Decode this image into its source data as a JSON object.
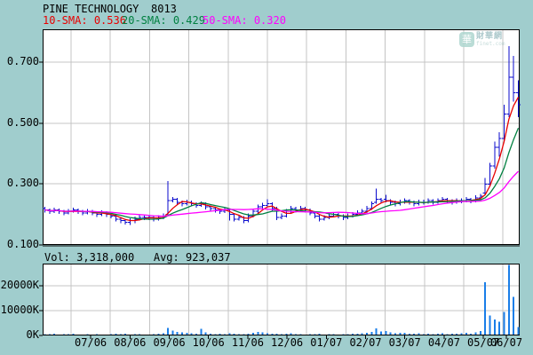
{
  "header": {
    "title": "PINE TECHNOLOGY",
    "code": "8013"
  },
  "legend": {
    "items": [
      {
        "label": "10-SMA:",
        "value": "0.536",
        "color": "#e80000",
        "approx_window": 4
      },
      {
        "label": "20-SMA:",
        "value": "0.429",
        "color": "#008040",
        "approx_window": 8
      },
      {
        "label": "50-SMA:",
        "value": "0.320",
        "color": "#ff00ff",
        "approx_window": 20
      }
    ]
  },
  "volume_header": {
    "vol_label": "Vol:",
    "vol_value": "3,318,000",
    "avg_label": "Avg:",
    "avg_value": "923,037"
  },
  "watermark": {
    "glyph": "華",
    "name": "財華網",
    "domain": "finet.com"
  },
  "colors": {
    "background": "#a0cdcd",
    "plot_bg": "#ffffff",
    "grid": "#c4c4c4",
    "axis": "#000000",
    "candle": "#0a0acc",
    "volume_bar": "#1a7ee8",
    "sma10": "#e80000",
    "sma20": "#008040",
    "sma50": "#ff00ff"
  },
  "chart_data": {
    "type": "candlestick+volume",
    "title": "PINE TECHNOLOGY 8013",
    "price_axis": {
      "tick_labels": [
        "0.700",
        "0.500",
        "0.300",
        "0.100"
      ],
      "tick_values": [
        0.7,
        0.5,
        0.3,
        0.1
      ],
      "min": 0.1,
      "max": 0.808
    },
    "volume_axis": {
      "tick_labels": [
        "20000K",
        "10000K",
        "0K"
      ],
      "tick_values": [
        20000,
        10000,
        0
      ],
      "max": 29000
    },
    "months": [
      "07/06",
      "08/06",
      "09/06",
      "10/06",
      "11/06",
      "12/06",
      "01/07",
      "02/07",
      "03/07",
      "04/07",
      "05/07",
      "06/07"
    ],
    "grid": true,
    "bars_note": "each bar = [open, high, low, close, volume_in_K], ~2.5 trading days per bar, Jun 2006 - mid Jun 2007",
    "bars": [
      [
        0.22,
        0.225,
        0.207,
        0.215,
        600
      ],
      [
        0.215,
        0.22,
        0.202,
        0.21,
        500
      ],
      [
        0.21,
        0.222,
        0.205,
        0.215,
        700
      ],
      [
        0.215,
        0.22,
        0.202,
        0.21,
        400
      ],
      [
        0.21,
        0.215,
        0.197,
        0.205,
        600
      ],
      [
        0.205,
        0.218,
        0.2,
        0.21,
        500
      ],
      [
        0.21,
        0.222,
        0.207,
        0.215,
        800
      ],
      [
        0.215,
        0.22,
        0.202,
        0.21,
        400
      ],
      [
        0.21,
        0.215,
        0.197,
        0.205,
        350
      ],
      [
        0.205,
        0.218,
        0.2,
        0.21,
        500
      ],
      [
        0.21,
        0.215,
        0.197,
        0.205,
        300
      ],
      [
        0.205,
        0.21,
        0.192,
        0.2,
        450
      ],
      [
        0.2,
        0.213,
        0.195,
        0.205,
        400
      ],
      [
        0.205,
        0.21,
        0.192,
        0.2,
        350
      ],
      [
        0.2,
        0.205,
        0.187,
        0.195,
        500
      ],
      [
        0.195,
        0.2,
        0.177,
        0.185,
        700
      ],
      [
        0.185,
        0.19,
        0.172,
        0.18,
        600
      ],
      [
        0.18,
        0.185,
        0.167,
        0.175,
        800
      ],
      [
        0.175,
        0.188,
        0.165,
        0.18,
        400
      ],
      [
        0.18,
        0.193,
        0.172,
        0.185,
        500
      ],
      [
        0.185,
        0.198,
        0.18,
        0.19,
        600
      ],
      [
        0.19,
        0.196,
        0.182,
        0.19,
        300
      ],
      [
        0.19,
        0.196,
        0.182,
        0.19,
        400
      ],
      [
        0.19,
        0.195,
        0.177,
        0.185,
        500
      ],
      [
        0.185,
        0.198,
        0.18,
        0.19,
        700
      ],
      [
        0.19,
        0.203,
        0.185,
        0.195,
        900
      ],
      [
        0.2,
        0.31,
        0.195,
        0.245,
        3000
      ],
      [
        0.245,
        0.258,
        0.24,
        0.25,
        2000
      ],
      [
        0.25,
        0.255,
        0.232,
        0.24,
        1500
      ],
      [
        0.24,
        0.245,
        0.227,
        0.235,
        1200
      ],
      [
        0.235,
        0.248,
        0.23,
        0.24,
        1000
      ],
      [
        0.24,
        0.245,
        0.227,
        0.235,
        900
      ],
      [
        0.235,
        0.24,
        0.222,
        0.23,
        800
      ],
      [
        0.23,
        0.243,
        0.225,
        0.235,
        2600
      ],
      [
        0.235,
        0.24,
        0.217,
        0.225,
        1200
      ],
      [
        0.225,
        0.23,
        0.212,
        0.22,
        700
      ],
      [
        0.22,
        0.225,
        0.207,
        0.215,
        600
      ],
      [
        0.215,
        0.22,
        0.202,
        0.21,
        800
      ],
      [
        0.21,
        0.223,
        0.205,
        0.215,
        500
      ],
      [
        0.215,
        0.218,
        0.18,
        0.2,
        900
      ],
      [
        0.2,
        0.205,
        0.177,
        0.185,
        700
      ],
      [
        0.185,
        0.198,
        0.18,
        0.19,
        500
      ],
      [
        0.19,
        0.195,
        0.172,
        0.18,
        600
      ],
      [
        0.18,
        0.203,
        0.175,
        0.195,
        800
      ],
      [
        0.195,
        0.218,
        0.19,
        0.21,
        1100
      ],
      [
        0.21,
        0.233,
        0.205,
        0.225,
        1500
      ],
      [
        0.225,
        0.238,
        0.22,
        0.23,
        1200
      ],
      [
        0.23,
        0.25,
        0.225,
        0.235,
        900
      ],
      [
        0.235,
        0.24,
        0.212,
        0.22,
        700
      ],
      [
        0.22,
        0.225,
        0.182,
        0.19,
        800
      ],
      [
        0.19,
        0.203,
        0.185,
        0.195,
        500
      ],
      [
        0.195,
        0.218,
        0.19,
        0.21,
        700
      ],
      [
        0.21,
        0.228,
        0.205,
        0.22,
        900
      ],
      [
        0.22,
        0.225,
        0.207,
        0.215,
        600
      ],
      [
        0.215,
        0.228,
        0.21,
        0.22,
        500
      ],
      [
        0.22,
        0.225,
        0.207,
        0.215,
        400
      ],
      [
        0.215,
        0.22,
        0.197,
        0.205,
        600
      ],
      [
        0.205,
        0.21,
        0.187,
        0.195,
        500
      ],
      [
        0.195,
        0.2,
        0.177,
        0.185,
        700
      ],
      [
        0.185,
        0.198,
        0.18,
        0.19,
        400
      ],
      [
        0.19,
        0.203,
        0.185,
        0.195,
        500
      ],
      [
        0.195,
        0.208,
        0.19,
        0.2,
        600
      ],
      [
        0.2,
        0.205,
        0.187,
        0.195,
        400
      ],
      [
        0.195,
        0.2,
        0.182,
        0.19,
        500
      ],
      [
        0.19,
        0.203,
        0.185,
        0.195,
        600
      ],
      [
        0.195,
        0.208,
        0.19,
        0.2,
        700
      ],
      [
        0.2,
        0.213,
        0.195,
        0.205,
        800
      ],
      [
        0.205,
        0.218,
        0.2,
        0.21,
        900
      ],
      [
        0.21,
        0.228,
        0.205,
        0.22,
        1100
      ],
      [
        0.22,
        0.243,
        0.215,
        0.235,
        1400
      ],
      [
        0.24,
        0.285,
        0.235,
        0.25,
        2800
      ],
      [
        0.25,
        0.255,
        0.237,
        0.245,
        1600
      ],
      [
        0.25,
        0.265,
        0.24,
        0.245,
        1800
      ],
      [
        0.245,
        0.25,
        0.232,
        0.24,
        1200
      ],
      [
        0.24,
        0.245,
        0.227,
        0.235,
        900
      ],
      [
        0.235,
        0.248,
        0.23,
        0.24,
        1000
      ],
      [
        0.24,
        0.253,
        0.235,
        0.245,
        1100
      ],
      [
        0.245,
        0.25,
        0.232,
        0.24,
        800
      ],
      [
        0.24,
        0.245,
        0.227,
        0.235,
        700
      ],
      [
        0.235,
        0.248,
        0.23,
        0.24,
        900
      ],
      [
        0.24,
        0.248,
        0.232,
        0.24,
        600
      ],
      [
        0.24,
        0.253,
        0.235,
        0.245,
        700
      ],
      [
        0.245,
        0.25,
        0.232,
        0.24,
        500
      ],
      [
        0.24,
        0.253,
        0.235,
        0.245,
        800
      ],
      [
        0.245,
        0.258,
        0.24,
        0.25,
        900
      ],
      [
        0.25,
        0.255,
        0.237,
        0.245,
        600
      ],
      [
        0.245,
        0.25,
        0.232,
        0.24,
        700
      ],
      [
        0.24,
        0.253,
        0.235,
        0.245,
        800
      ],
      [
        0.245,
        0.253,
        0.237,
        0.245,
        900
      ],
      [
        0.245,
        0.258,
        0.24,
        0.25,
        1000
      ],
      [
        0.25,
        0.255,
        0.237,
        0.245,
        800
      ],
      [
        0.245,
        0.263,
        0.24,
        0.255,
        1300
      ],
      [
        0.255,
        0.268,
        0.25,
        0.26,
        1800
      ],
      [
        0.27,
        0.32,
        0.265,
        0.3,
        21500
      ],
      [
        0.3,
        0.37,
        0.295,
        0.36,
        8000
      ],
      [
        0.36,
        0.44,
        0.35,
        0.42,
        6500
      ],
      [
        0.42,
        0.47,
        0.39,
        0.45,
        5500
      ],
      [
        0.45,
        0.56,
        0.44,
        0.53,
        9500
      ],
      [
        0.53,
        0.752,
        0.52,
        0.65,
        28500
      ],
      [
        0.65,
        0.72,
        0.57,
        0.6,
        15500
      ],
      [
        0.6,
        0.64,
        0.52,
        0.56,
        3318
      ]
    ],
    "sma_values_shown": {
      "10-SMA": 0.536,
      "20-SMA": 0.429,
      "50-SMA": 0.32
    },
    "volume_shown": {
      "Vol": 3318000,
      "Avg": 923037
    }
  }
}
